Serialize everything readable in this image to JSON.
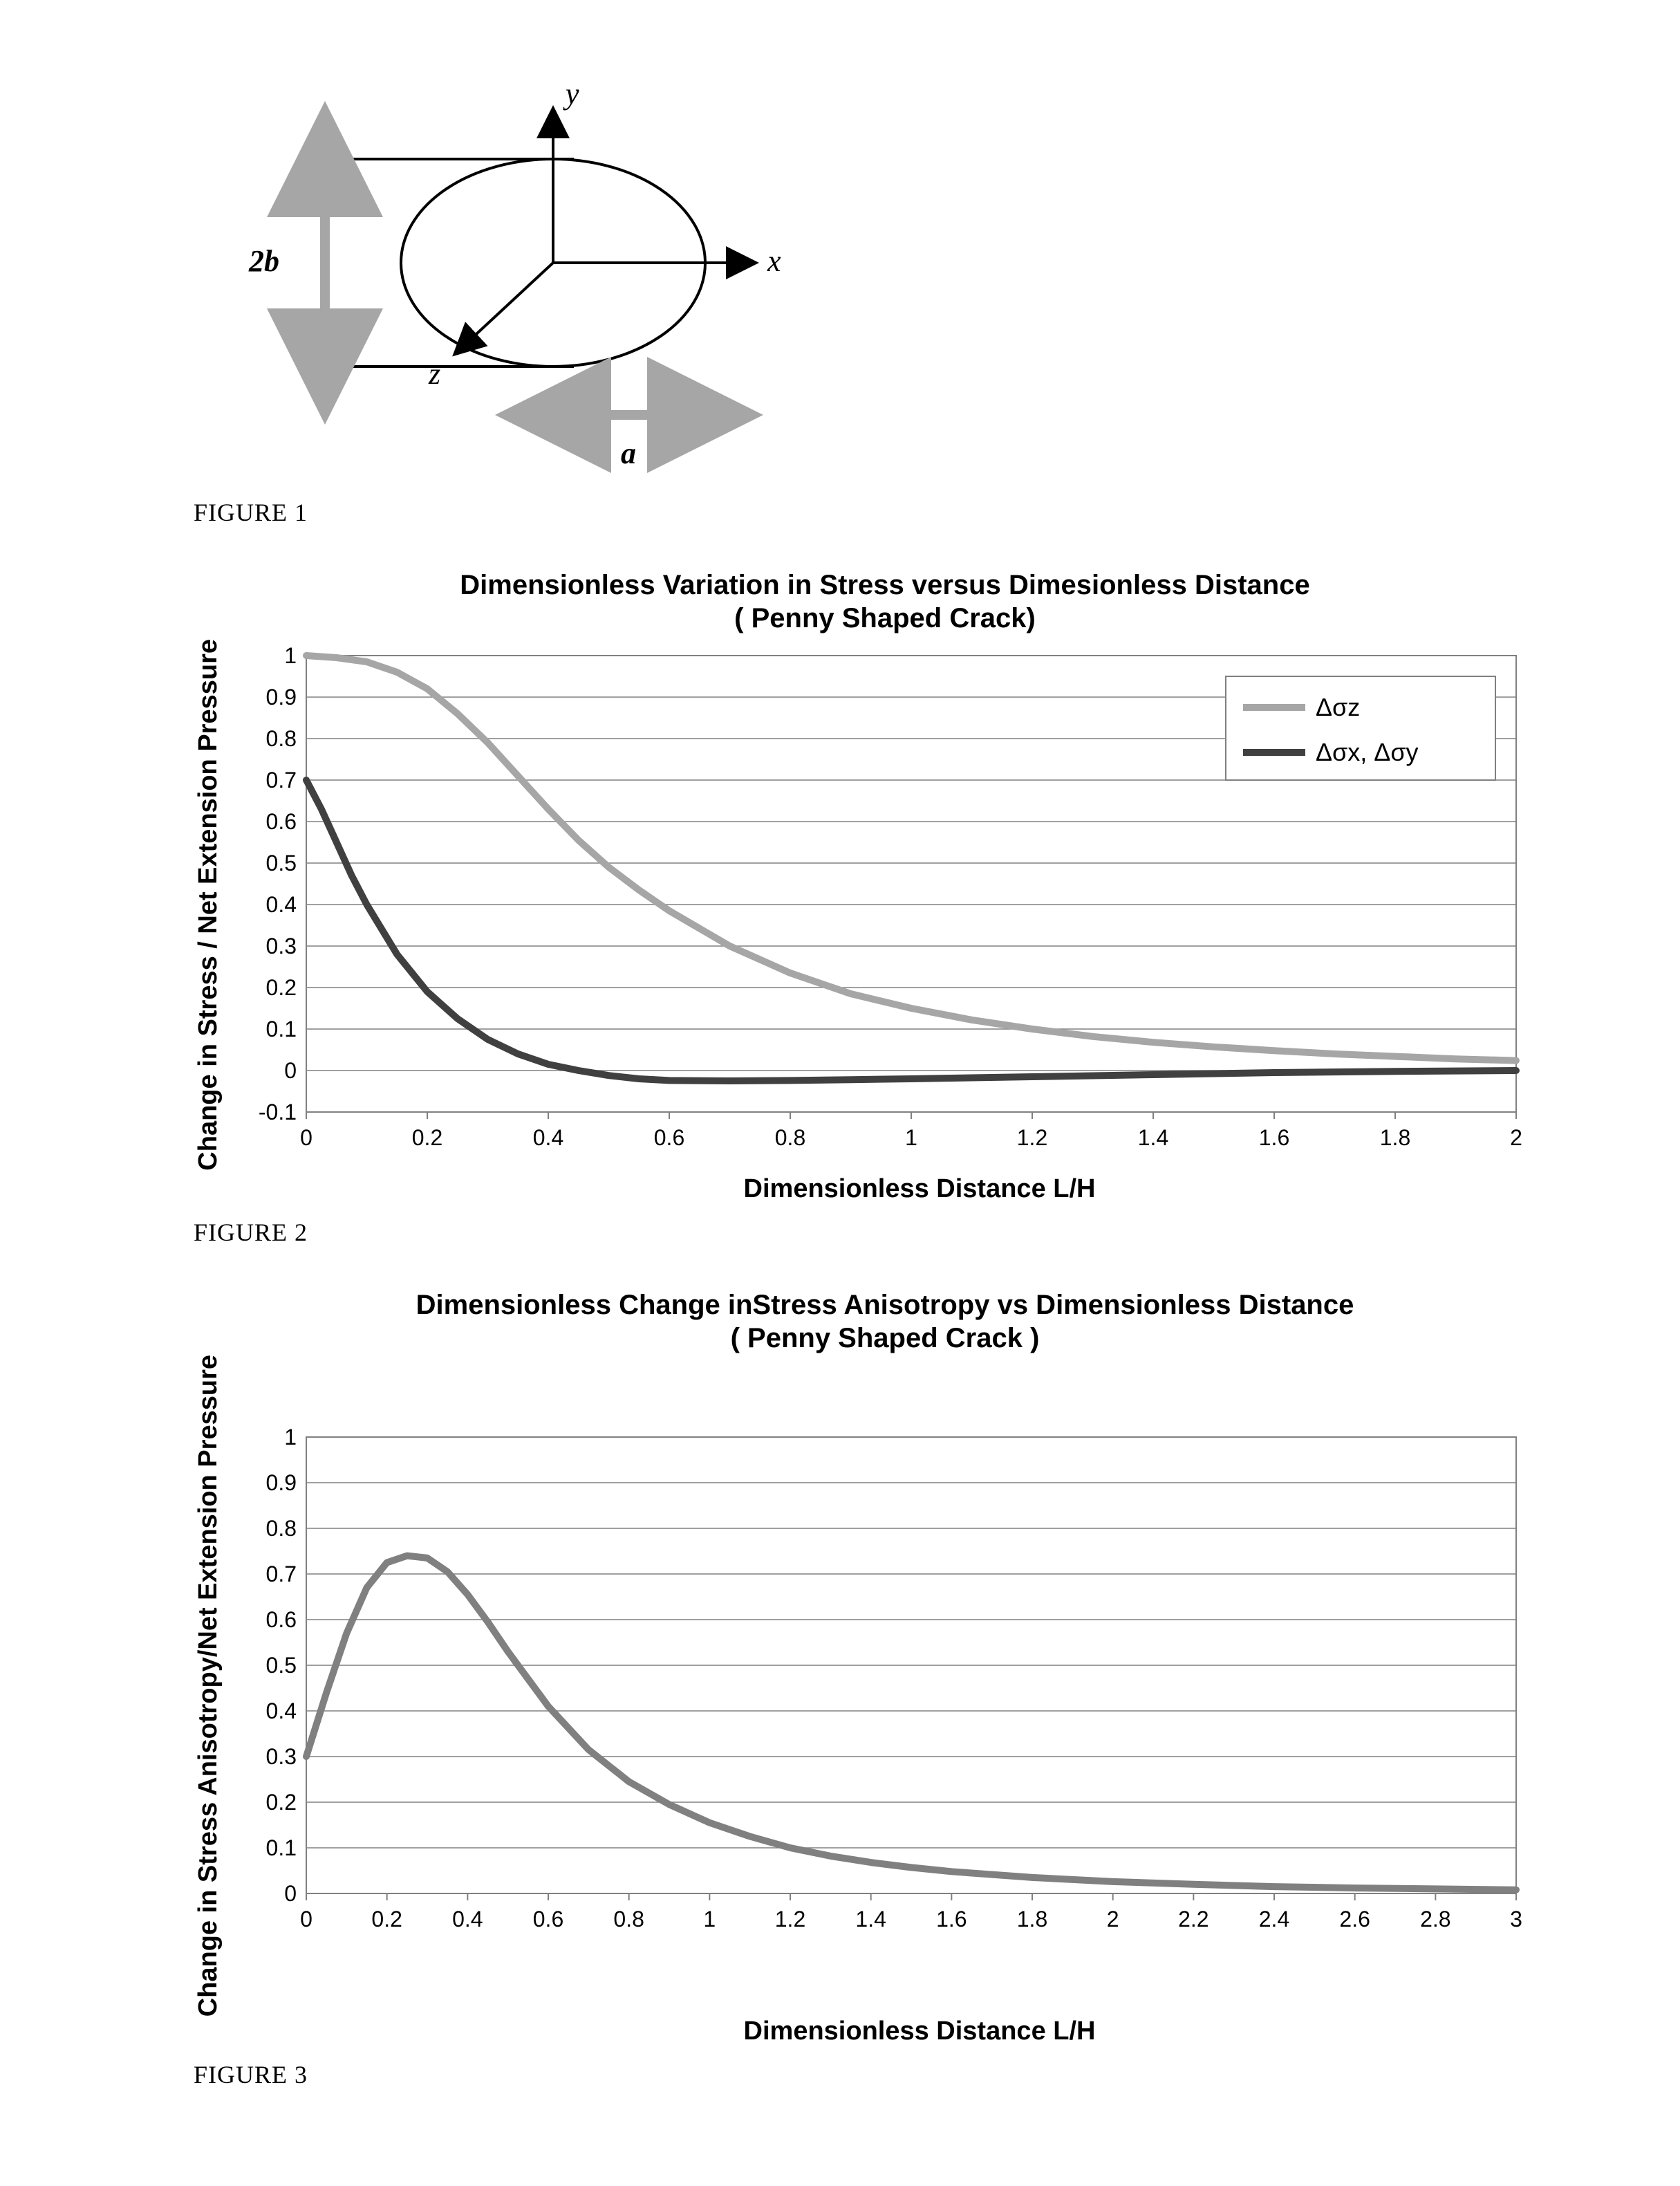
{
  "figure1": {
    "caption": "FIGURE 1",
    "labels": {
      "x": "x",
      "y": "y",
      "z": "z",
      "a": "a",
      "b2": "2b"
    },
    "ellipse": {
      "rx": 220,
      "ry": 150
    },
    "arrow_color": "#a6a6a6",
    "axis_color": "#000000",
    "label_fontsize": 44,
    "label_font_weight_italic": true
  },
  "figure2": {
    "caption": "FIGURE 2",
    "title_line1": "Dimensionless Variation in Stress versus Dimesionless Distance",
    "title_line2": "( Penny Shaped Crack)",
    "ylabel": "Change in Stress / Net Extension Pressure",
    "xlabel": "Dimensionless Distance L/H",
    "legend": {
      "s1": "Δσz",
      "s2": "Δσx, Δσy"
    },
    "xlim": [
      0,
      2
    ],
    "ylim": [
      -0.1,
      1
    ],
    "xticks": [
      0,
      0.2,
      0.4,
      0.6,
      0.8,
      1,
      1.2,
      1.4,
      1.6,
      1.8,
      2
    ],
    "yticks": [
      -0.1,
      0,
      0.1,
      0.2,
      0.3,
      0.4,
      0.5,
      0.6,
      0.7,
      0.8,
      0.9,
      1
    ],
    "grid_color": "#808080",
    "border_color": "#808080",
    "plot_bg": "#ffffff",
    "tick_fontsize": 32,
    "title_fontsize": 40,
    "label_fontsize": 38,
    "series": {
      "sigma_z": {
        "color": "#a6a6a6",
        "width": 10,
        "x": [
          0,
          0.05,
          0.1,
          0.15,
          0.2,
          0.25,
          0.3,
          0.35,
          0.4,
          0.45,
          0.5,
          0.55,
          0.6,
          0.7,
          0.8,
          0.9,
          1.0,
          1.1,
          1.2,
          1.3,
          1.4,
          1.5,
          1.6,
          1.7,
          1.8,
          1.9,
          2.0
        ],
        "y": [
          1.0,
          0.995,
          0.985,
          0.96,
          0.92,
          0.86,
          0.79,
          0.71,
          0.63,
          0.555,
          0.49,
          0.435,
          0.385,
          0.3,
          0.235,
          0.185,
          0.15,
          0.122,
          0.1,
          0.082,
          0.068,
          0.057,
          0.048,
          0.04,
          0.034,
          0.028,
          0.024
        ]
      },
      "sigma_xy": {
        "color": "#404040",
        "width": 10,
        "x": [
          0,
          0.025,
          0.05,
          0.075,
          0.1,
          0.15,
          0.2,
          0.25,
          0.3,
          0.35,
          0.4,
          0.45,
          0.5,
          0.55,
          0.6,
          0.7,
          0.8,
          0.9,
          1.0,
          1.2,
          1.4,
          1.6,
          1.8,
          2.0
        ],
        "y": [
          0.7,
          0.63,
          0.55,
          0.47,
          0.4,
          0.28,
          0.19,
          0.125,
          0.075,
          0.04,
          0.015,
          0.0,
          -0.012,
          -0.02,
          -0.024,
          -0.025,
          -0.024,
          -0.022,
          -0.02,
          -0.015,
          -0.01,
          -0.005,
          -0.002,
          0.0
        ]
      }
    }
  },
  "figure3": {
    "caption": "FIGURE 3",
    "title_line1": "Dimensionless Change inStress Anisotropy vs Dimensionless Distance",
    "title_line2": "( Penny Shaped Crack )",
    "ylabel": "Change in Stress Anisotropy/Net Extension Pressure",
    "xlabel": "Dimensionless Distance L/H",
    "xlim": [
      0,
      3
    ],
    "ylim": [
      0,
      1
    ],
    "xticks": [
      0,
      0.2,
      0.4,
      0.6,
      0.8,
      1,
      1.2,
      1.4,
      1.6,
      1.8,
      2,
      2.2,
      2.4,
      2.6,
      2.8,
      3
    ],
    "yticks": [
      0,
      0.1,
      0.2,
      0.3,
      0.4,
      0.5,
      0.6,
      0.7,
      0.8,
      0.9,
      1
    ],
    "grid_color": "#808080",
    "border_color": "#808080",
    "plot_bg": "#ffffff",
    "tick_fontsize": 32,
    "title_fontsize": 40,
    "label_fontsize": 38,
    "series": {
      "anisotropy": {
        "color": "#808080",
        "width": 10,
        "x": [
          0,
          0.05,
          0.1,
          0.15,
          0.2,
          0.25,
          0.3,
          0.35,
          0.4,
          0.45,
          0.5,
          0.6,
          0.7,
          0.8,
          0.9,
          1.0,
          1.1,
          1.2,
          1.3,
          1.4,
          1.5,
          1.6,
          1.8,
          2.0,
          2.2,
          2.4,
          2.6,
          2.8,
          3.0
        ],
        "y": [
          0.3,
          0.44,
          0.57,
          0.67,
          0.725,
          0.74,
          0.735,
          0.705,
          0.655,
          0.595,
          0.53,
          0.41,
          0.315,
          0.245,
          0.195,
          0.155,
          0.125,
          0.1,
          0.082,
          0.068,
          0.057,
          0.048,
          0.035,
          0.026,
          0.02,
          0.015,
          0.012,
          0.01,
          0.008
        ]
      }
    }
  }
}
